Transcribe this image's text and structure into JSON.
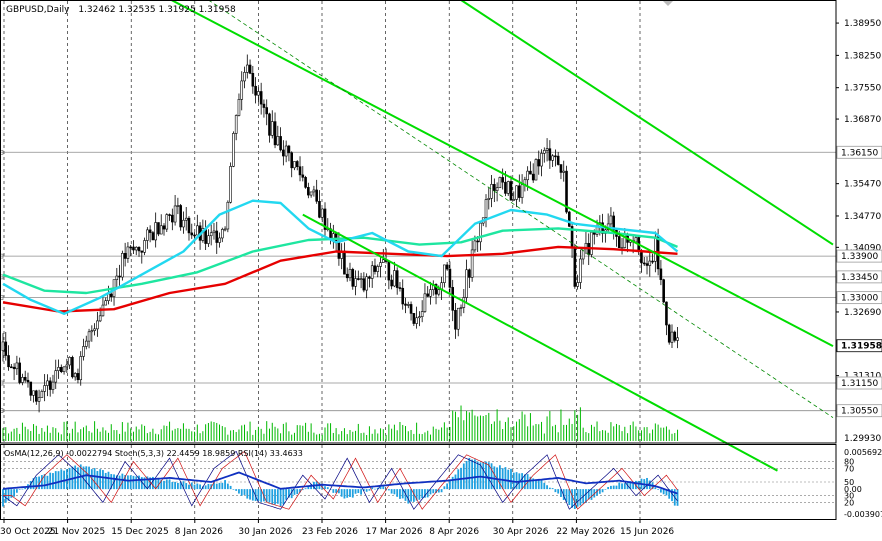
{
  "chart_title": {
    "symbol": "GBPUSD,Daily",
    "ohlc": "1.32462 1.32535 1.31925 1.31958"
  },
  "indicator_header": "OsMA(12,26,9) -0.0022794  Stoch(5,3,3) 22.4459 18.9859  RSI(14) 33.4633",
  "chart_data": [
    {
      "type": "candlestick",
      "panel": "price",
      "ylim": [
        1.2985,
        1.3945
      ],
      "yticks": [
        1.3895,
        1.3825,
        1.3755,
        1.3687,
        1.3547,
        1.3477,
        1.3409,
        1.3269,
        1.3131
      ],
      "price_labels": [
        {
          "value": 1.3615,
          "text": "1.36150",
          "kind": "level"
        },
        {
          "value": 1.339,
          "text": "1.33900",
          "kind": "level"
        },
        {
          "value": 1.3345,
          "text": "1.33450",
          "kind": "level"
        },
        {
          "value": 1.33,
          "text": "1.33000",
          "kind": "level"
        },
        {
          "value": 1.3115,
          "text": "1.31150",
          "kind": "level"
        },
        {
          "value": 1.3055,
          "text": "1.30550",
          "kind": "level"
        },
        {
          "value": 1.31958,
          "text": "1.31958",
          "kind": "current"
        }
      ],
      "bottom_label": "1.29930",
      "x_labels": [
        "30 Oct 2025",
        "21 Nov 2025",
        "15 Dec 2025",
        "8 Jan 2026",
        "30 Jan 2026",
        "23 Feb 2026",
        "17 Mar 2026",
        "8 Apr 2026",
        "30 Apr 2026",
        "22 May 2026",
        "15 Jun 2026"
      ],
      "close_path": [
        [
          0,
          1.3185
        ],
        [
          8,
          1.312
        ],
        [
          14,
          1.308
        ],
        [
          20,
          1.3165
        ],
        [
          27,
          1.314
        ],
        [
          33,
          1.325
        ],
        [
          38,
          1.331
        ],
        [
          44,
          1.339
        ],
        [
          50,
          1.341
        ],
        [
          56,
          1.346
        ],
        [
          62,
          1.349
        ],
        [
          68,
          1.3445
        ],
        [
          74,
          1.342
        ],
        [
          80,
          1.346
        ],
        [
          84,
          1.371
        ],
        [
          88,
          1.382
        ],
        [
          92,
          1.373
        ],
        [
          97,
          1.366
        ],
        [
          102,
          1.3615
        ],
        [
          108,
          1.356
        ],
        [
          114,
          1.349
        ],
        [
          118,
          1.344
        ],
        [
          124,
          1.335
        ],
        [
          130,
          1.332
        ],
        [
          136,
          1.338
        ],
        [
          142,
          1.333
        ],
        [
          148,
          1.326
        ],
        [
          154,
          1.33
        ],
        [
          160,
          1.336
        ],
        [
          163,
          1.325
        ],
        [
          167,
          1.334
        ],
        [
          173,
          1.348
        ],
        [
          178,
          1.356
        ],
        [
          184,
          1.352
        ],
        [
          188,
          1.354
        ],
        [
          193,
          1.36
        ],
        [
          198,
          1.362
        ],
        [
          202,
          1.356
        ],
        [
          206,
          1.334
        ],
        [
          212,
          1.343
        ],
        [
          218,
          1.347
        ],
        [
          222,
          1.342
        ],
        [
          228,
          1.344
        ],
        [
          232,
          1.335
        ],
        [
          235,
          1.341
        ],
        [
          238,
          1.329
        ],
        [
          240,
          1.322
        ],
        [
          243,
          1.32
        ]
      ],
      "ma_series": [
        {
          "color": "#e60000",
          "values": [
            [
              0,
              1.329
            ],
            [
              20,
              1.327
            ],
            [
              40,
              1.3275
            ],
            [
              60,
              1.331
            ],
            [
              80,
              1.333
            ],
            [
              100,
              1.338
            ],
            [
              120,
              1.34
            ],
            [
              140,
              1.3395
            ],
            [
              160,
              1.339
            ],
            [
              180,
              1.3395
            ],
            [
              200,
              1.341
            ],
            [
              220,
              1.3405
            ],
            [
              243,
              1.3395
            ]
          ]
        },
        {
          "color": "#1ee6a0",
          "values": [
            [
              0,
              1.335
            ],
            [
              15,
              1.3315
            ],
            [
              30,
              1.331
            ],
            [
              50,
              1.333
            ],
            [
              70,
              1.3355
            ],
            [
              90,
              1.34
            ],
            [
              110,
              1.3425
            ],
            [
              130,
              1.343
            ],
            [
              150,
              1.3415
            ],
            [
              165,
              1.342
            ],
            [
              180,
              1.3445
            ],
            [
              200,
              1.345
            ],
            [
              220,
              1.344
            ],
            [
              235,
              1.343
            ],
            [
              243,
              1.341
            ]
          ]
        },
        {
          "color": "#22d8f0",
          "values": [
            [
              0,
              1.333
            ],
            [
              10,
              1.3295
            ],
            [
              22,
              1.3265
            ],
            [
              35,
              1.33
            ],
            [
              50,
              1.335
            ],
            [
              65,
              1.34
            ],
            [
              78,
              1.348
            ],
            [
              90,
              1.351
            ],
            [
              100,
              1.3505
            ],
            [
              110,
              1.345
            ],
            [
              120,
              1.342
            ],
            [
              133,
              1.344
            ],
            [
              146,
              1.34
            ],
            [
              158,
              1.339
            ],
            [
              170,
              1.346
            ],
            [
              183,
              1.349
            ],
            [
              196,
              1.348
            ],
            [
              206,
              1.346
            ],
            [
              220,
              1.345
            ],
            [
              235,
              1.344
            ],
            [
              243,
              1.34
            ]
          ]
        }
      ],
      "trend_lines": [
        {
          "color": "#00dd00",
          "from": [
            40,
            1.401
          ],
          "to": [
            299,
            1.3195
          ]
        },
        {
          "color": "#00dd00",
          "from": [
            108,
            1.348
          ],
          "to": [
            279,
            1.2925
          ]
        },
        {
          "color": "#00dd00",
          "from": [
            165,
            1.3945
          ],
          "to": [
            299,
            1.3415
          ]
        },
        {
          "color": "#008800",
          "style": "dash",
          "from": [
            74,
            1.3945
          ],
          "to": [
            299,
            1.304
          ]
        }
      ],
      "volume_relative": "volume bars along bottom of price panel"
    },
    {
      "type": "bar",
      "panel": "oscillator",
      "name": "OsMA",
      "ylim": [
        -0.0039,
        0.0057
      ],
      "right_labels": [
        {
          "text": "0.005692",
          "pos": "top"
        },
        {
          "text": "80",
          "level": 80
        },
        {
          "text": "70",
          "level": 70
        },
        {
          "text": "50",
          "level": 50
        },
        {
          "text": "0.00",
          "level": "zero"
        },
        {
          "text": "30",
          "level": 30
        },
        {
          "text": "20",
          "level": 20
        },
        {
          "text": "-0.003907",
          "pos": "bottom"
        }
      ],
      "osma_path": [
        [
          0,
          -0.002
        ],
        [
          12,
          0.0015
        ],
        [
          28,
          0.003
        ],
        [
          42,
          0.0018
        ],
        [
          58,
          0.0012
        ],
        [
          72,
          0.0005
        ],
        [
          80,
          0.001
        ],
        [
          88,
          -0.0012
        ],
        [
          100,
          -0.002
        ],
        [
          112,
          0.001
        ],
        [
          124,
          -0.0012
        ],
        [
          136,
          0.0005
        ],
        [
          146,
          -0.0018
        ],
        [
          158,
          -0.0002
        ],
        [
          168,
          0.004
        ],
        [
          182,
          0.0025
        ],
        [
          194,
          0.0012
        ],
        [
          206,
          -0.0025
        ],
        [
          220,
          0.0005
        ],
        [
          232,
          0.0014
        ],
        [
          243,
          -0.0023
        ]
      ],
      "stoch_main": [
        [
          0,
          30
        ],
        [
          5,
          15
        ],
        [
          12,
          60
        ],
        [
          20,
          90
        ],
        [
          28,
          60
        ],
        [
          36,
          20
        ],
        [
          44,
          80
        ],
        [
          52,
          40
        ],
        [
          60,
          85
        ],
        [
          68,
          15
        ],
        [
          76,
          70
        ],
        [
          84,
          95
        ],
        [
          92,
          20
        ],
        [
          100,
          10
        ],
        [
          108,
          60
        ],
        [
          116,
          25
        ],
        [
          124,
          85
        ],
        [
          132,
          20
        ],
        [
          140,
          70
        ],
        [
          148,
          10
        ],
        [
          156,
          50
        ],
        [
          164,
          90
        ],
        [
          172,
          75
        ],
        [
          180,
          20
        ],
        [
          188,
          60
        ],
        [
          196,
          90
        ],
        [
          204,
          10
        ],
        [
          212,
          40
        ],
        [
          220,
          70
        ],
        [
          228,
          30
        ],
        [
          236,
          60
        ],
        [
          243,
          22
        ]
      ],
      "rsi": [
        [
          0,
          40
        ],
        [
          15,
          45
        ],
        [
          30,
          60
        ],
        [
          45,
          52
        ],
        [
          60,
          56
        ],
        [
          75,
          50
        ],
        [
          85,
          64
        ],
        [
          100,
          40
        ],
        [
          115,
          46
        ],
        [
          130,
          42
        ],
        [
          145,
          48
        ],
        [
          160,
          52
        ],
        [
          172,
          58
        ],
        [
          185,
          50
        ],
        [
          200,
          56
        ],
        [
          210,
          48
        ],
        [
          222,
          52
        ],
        [
          235,
          44
        ],
        [
          243,
          33
        ]
      ]
    }
  ]
}
